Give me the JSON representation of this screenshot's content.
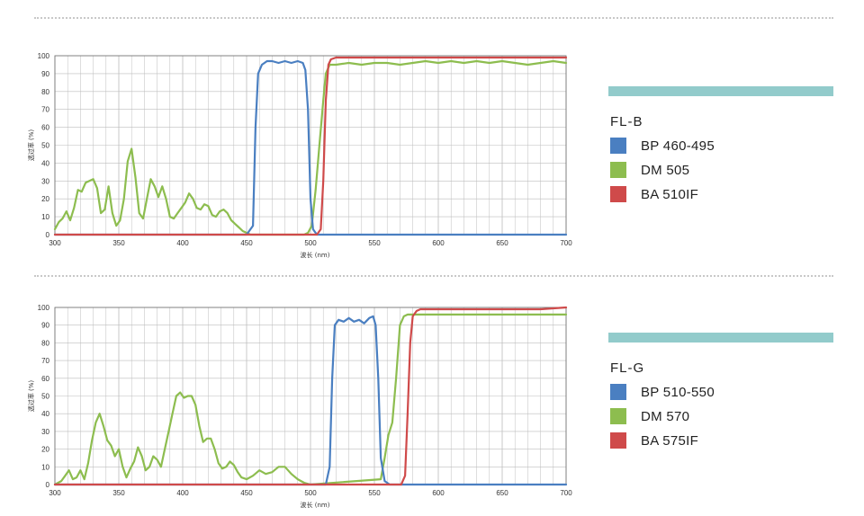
{
  "colors": {
    "blue": "#4a7fc1",
    "green": "#8dbd4f",
    "red": "#cf4a4a",
    "legend_bar": "#92cbcb",
    "grid": "#bdbdbd"
  },
  "chart_data": [
    {
      "type": "line",
      "title": "FL-B",
      "xlabel": "波长 (nm)",
      "ylabel": "透过率 (%)",
      "xlim": [
        300,
        700
      ],
      "ylim": [
        0,
        100
      ],
      "xticks": [
        300,
        350,
        400,
        450,
        500,
        550,
        600,
        650,
        700
      ],
      "yticks": [
        0,
        10,
        20,
        30,
        40,
        50,
        60,
        70,
        80,
        90,
        100
      ],
      "grid": true,
      "legend_placement": "right",
      "series": [
        {
          "name": "BP 460-495",
          "color": "blue",
          "x": [
            300,
            450,
            455,
            457,
            459,
            462,
            466,
            470,
            475,
            480,
            485,
            490,
            494,
            496,
            498,
            500,
            502,
            505,
            510,
            700
          ],
          "y": [
            0,
            0,
            5,
            60,
            90,
            95,
            97,
            97,
            96,
            97,
            96,
            97,
            96,
            92,
            70,
            20,
            3,
            0,
            0,
            0
          ]
        },
        {
          "name": "DM 505",
          "color": "green",
          "x": [
            300,
            303,
            306,
            309,
            312,
            315,
            318,
            321,
            324,
            327,
            330,
            333,
            336,
            339,
            342,
            345,
            348,
            351,
            354,
            357,
            360,
            363,
            366,
            369,
            372,
            375,
            378,
            381,
            384,
            387,
            390,
            393,
            396,
            399,
            402,
            405,
            408,
            411,
            414,
            417,
            420,
            423,
            426,
            429,
            432,
            435,
            438,
            441,
            444,
            447,
            450,
            453,
            456,
            460,
            465,
            480,
            495,
            498,
            501,
            504,
            507,
            510,
            512,
            515,
            520,
            530,
            540,
            550,
            560,
            570,
            580,
            590,
            600,
            610,
            620,
            630,
            640,
            650,
            660,
            670,
            680,
            690,
            700
          ],
          "y": [
            3,
            7,
            9,
            13,
            8,
            15,
            25,
            24,
            29,
            30,
            31,
            26,
            12,
            14,
            27,
            12,
            5,
            8,
            20,
            41,
            48,
            32,
            12,
            9,
            20,
            31,
            27,
            21,
            27,
            20,
            10,
            9,
            12,
            15,
            18,
            23,
            20,
            15,
            14,
            17,
            16,
            11,
            10,
            13,
            14,
            12,
            8,
            6,
            4,
            2,
            1,
            0,
            0,
            0,
            0,
            0,
            0,
            1,
            5,
            25,
            50,
            75,
            90,
            95,
            95,
            96,
            95,
            96,
            96,
            95,
            96,
            97,
            96,
            97,
            96,
            97,
            96,
            97,
            96,
            95,
            96,
            97,
            96
          ]
        },
        {
          "name": "BA 510IF",
          "color": "red",
          "x": [
            300,
            505,
            508,
            510,
            512,
            514,
            516,
            520,
            530,
            560,
            600,
            650,
            680,
            700
          ],
          "y": [
            0,
            0,
            3,
            30,
            75,
            95,
            98,
            99,
            99,
            99,
            99,
            99,
            99,
            99
          ]
        }
      ]
    },
    {
      "type": "line",
      "title": "FL-G",
      "xlabel": "波长 (nm)",
      "ylabel": "透过率 (%)",
      "xlim": [
        300,
        700
      ],
      "ylim": [
        0,
        100
      ],
      "xticks": [
        300,
        350,
        400,
        450,
        500,
        550,
        600,
        650,
        700
      ],
      "yticks": [
        0,
        10,
        20,
        30,
        40,
        50,
        60,
        70,
        80,
        90,
        100
      ],
      "grid": true,
      "legend_placement": "right",
      "series": [
        {
          "name": "BP 510-550",
          "color": "blue",
          "x": [
            300,
            512,
            515,
            517,
            519,
            522,
            526,
            530,
            534,
            538,
            542,
            546,
            549,
            551,
            553,
            555,
            558,
            562,
            700
          ],
          "y": [
            0,
            0,
            10,
            60,
            90,
            93,
            92,
            94,
            92,
            93,
            91,
            94,
            95,
            90,
            60,
            15,
            2,
            0,
            0
          ]
        },
        {
          "name": "DM 570",
          "color": "green",
          "x": [
            300,
            305,
            308,
            311,
            314,
            317,
            320,
            323,
            326,
            329,
            332,
            335,
            338,
            341,
            344,
            347,
            350,
            353,
            356,
            359,
            362,
            365,
            368,
            371,
            374,
            377,
            380,
            383,
            386,
            389,
            392,
            395,
            398,
            401,
            404,
            407,
            410,
            413,
            416,
            419,
            422,
            425,
            428,
            431,
            434,
            437,
            440,
            443,
            446,
            450,
            455,
            460,
            465,
            470,
            475,
            480,
            485,
            490,
            495,
            500,
            555,
            558,
            561,
            564,
            567,
            570,
            573,
            576,
            580,
            590,
            600,
            620,
            640,
            660,
            680,
            700
          ],
          "y": [
            0,
            2,
            5,
            8,
            3,
            4,
            8,
            3,
            12,
            25,
            35,
            40,
            33,
            25,
            22,
            16,
            20,
            10,
            4,
            9,
            13,
            21,
            16,
            8,
            10,
            16,
            14,
            10,
            20,
            30,
            40,
            50,
            52,
            49,
            50,
            50,
            45,
            33,
            24,
            26,
            26,
            20,
            12,
            9,
            10,
            13,
            11,
            7,
            4,
            3,
            5,
            8,
            6,
            7,
            10,
            10,
            6,
            3,
            1,
            0,
            3,
            15,
            28,
            35,
            60,
            90,
            95,
            96,
            96,
            96,
            96,
            96,
            96,
            96,
            96,
            96
          ]
        },
        {
          "name": "BA 575IF",
          "color": "red",
          "x": [
            300,
            571,
            574,
            576,
            578,
            580,
            583,
            586,
            590,
            600,
            620,
            650,
            680,
            700
          ],
          "y": [
            0,
            0,
            5,
            40,
            80,
            95,
            98,
            99,
            99,
            99,
            99,
            99,
            99,
            100
          ]
        }
      ]
    }
  ]
}
